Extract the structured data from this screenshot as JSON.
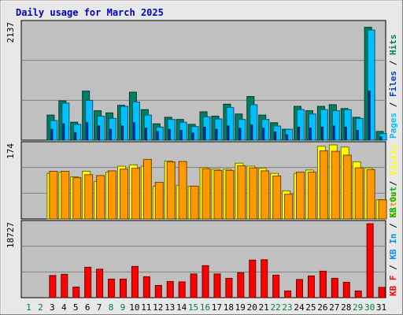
{
  "chart_data": {
    "type": "bar",
    "title": "Daily usage for March 2025",
    "days": [
      "1",
      "2",
      "3",
      "4",
      "5",
      "6",
      "7",
      "8",
      "9",
      "10",
      "11",
      "12",
      "13",
      "14",
      "15",
      "16",
      "17",
      "18",
      "19",
      "20",
      "21",
      "22",
      "23",
      "24",
      "25",
      "26",
      "27",
      "28",
      "29",
      "30",
      "31"
    ],
    "weekend_days": [
      "1",
      "2",
      "8",
      "9",
      "15",
      "16",
      "22",
      "23",
      "29",
      "30"
    ],
    "colors": {
      "background": "#c0c0c0",
      "frame_bg": "#e8e8e8",
      "title": "#0000c0",
      "hits": "#008060",
      "files": "#00c0ff",
      "pages": "#0040c0",
      "visits": "#ffff00",
      "sites": "#ff9900",
      "kb": "#ff0000",
      "kb_in": "#0090ff",
      "kb_out": "#00c000",
      "weekend_label": "#008040",
      "weekday_label": "#000000"
    },
    "panels": [
      {
        "name": "hits-files-pages",
        "ymax": 2137,
        "ytick_label": "2137",
        "legend": [
          {
            "text": "Pages",
            "color": "#00c0ff"
          },
          {
            "text": " / ",
            "color": "#000000"
          },
          {
            "text": "Files",
            "color": "#0040c0"
          },
          {
            "text": " / ",
            "color": "#000000"
          },
          {
            "text": "Hits",
            "color": "#008060"
          }
        ],
        "series": [
          {
            "name": "Hits",
            "color": "#008060",
            "values": [
              0,
              0,
              460,
              720,
              330,
              900,
              540,
              500,
              640,
              880,
              560,
              300,
              420,
              380,
              290,
              520,
              440,
              660,
              480,
              800,
              460,
              320,
              200,
              620,
              540,
              620,
              650,
              580,
              420,
              2070,
              160
            ]
          },
          {
            "name": "Files",
            "color": "#00c0ff",
            "values": [
              0,
              0,
              360,
              680,
              290,
              730,
              440,
              400,
              620,
              700,
              460,
              240,
              380,
              330,
              250,
              430,
              390,
              600,
              380,
              650,
              380,
              260,
              200,
              560,
              480,
              560,
              540,
              560,
              400,
              2020,
              120
            ]
          },
          {
            "name": "Pages",
            "color": "#0040c0",
            "values": [
              0,
              0,
              200,
              300,
              140,
              320,
              260,
              200,
              260,
              320,
              220,
              160,
              200,
              180,
              130,
              240,
              200,
              260,
              220,
              280,
              220,
              150,
              100,
              240,
              220,
              240,
              260,
              240,
              180,
              900,
              60
            ]
          }
        ]
      },
      {
        "name": "visits-sites",
        "ymax": 174,
        "ytick_label": "174",
        "legend": [
          {
            "text": "Sites",
            "color": "#ff9900"
          },
          {
            "text": " / ",
            "color": "#000000"
          },
          {
            "text": "Visits",
            "color": "#ffff00"
          }
        ],
        "series": [
          {
            "name": "Visits",
            "color": "#ffff00",
            "values": [
              0,
              0,
              107,
              110,
              99,
              112,
              88,
              110,
              124,
              127,
              124,
              77,
              136,
              79,
              77,
              121,
              117,
              117,
              131,
              124,
              119,
              107,
              66,
              107,
              115,
              171,
              174,
              169,
              134,
              120,
              45
            ]
          },
          {
            "name": "Sites",
            "color": "#ff9900",
            "values": [
              0,
              0,
              112,
              112,
              97,
              104,
              102,
              113,
              117,
              119,
              140,
              86,
              134,
              135,
              77,
              118,
              114,
              114,
              125,
              120,
              113,
              101,
              58,
              110,
              110,
              160,
              159,
              150,
              120,
              116,
              45
            ]
          }
        ]
      },
      {
        "name": "kb",
        "ymax": 18727,
        "ytick_label": "18727",
        "legend": [
          {
            "text": "KB F",
            "color": "#ff0000"
          },
          {
            "text": " / ",
            "color": "#000000"
          },
          {
            "text": "KB In",
            "color": "#0090ff"
          },
          {
            "text": " / ",
            "color": "#000000"
          },
          {
            "text": "KB Out",
            "color": "#00c000"
          }
        ],
        "series": [
          {
            "name": "KB F",
            "color": "#ff0000",
            "values": [
              0,
              0,
              5600,
              5900,
              2700,
              7700,
              7200,
              4700,
              4700,
              7900,
              5300,
              3100,
              4100,
              4000,
              6000,
              8100,
              6000,
              4900,
              6300,
              9500,
              9600,
              5700,
              1700,
              4600,
              5500,
              6700,
              4900,
              3900,
              1700,
              18700,
              2600
            ]
          }
        ]
      }
    ]
  }
}
